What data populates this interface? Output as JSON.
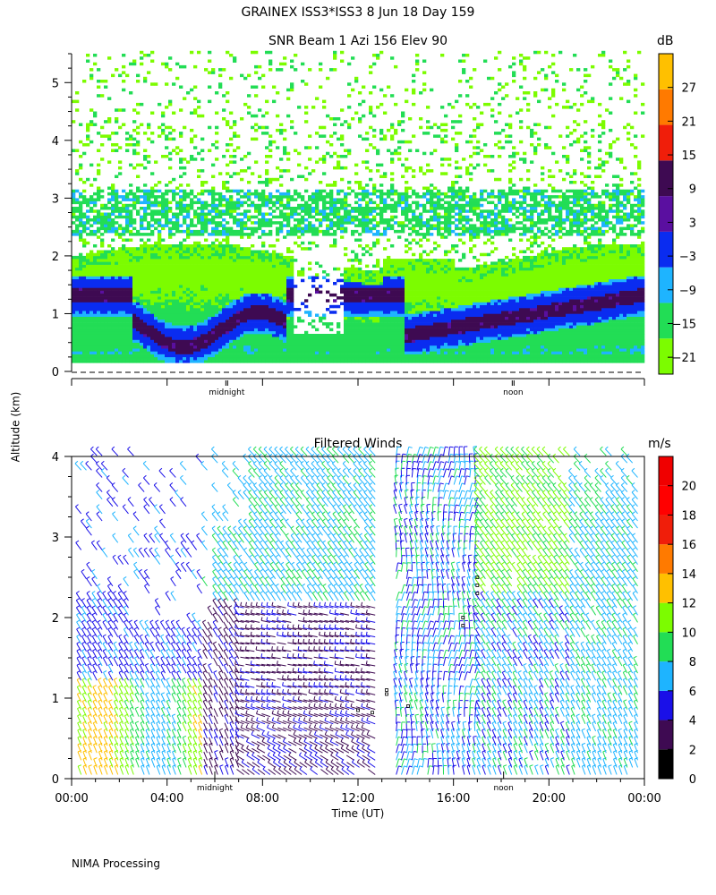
{
  "header": {
    "title": "GRAINEX ISS3*ISS3   8 Jun 18 Day 159",
    "subtitle": "SNR Beam 1 Azi 156 Elev 90"
  },
  "footer": {
    "processing": "NIMA Processing"
  },
  "chart_data": [
    {
      "type": "heatmap",
      "title": "SNR Beam 1 Azi 156 Elev 90",
      "ylabel": "Altitude (km)",
      "ylim": [
        0,
        5.5
      ],
      "yticks": [
        "0",
        "1",
        "2",
        "3",
        "4",
        "5"
      ],
      "markers": [
        "midnight",
        "noon"
      ],
      "marker_hours": [
        6.5,
        18.5
      ],
      "colorbar": {
        "unit": "dB",
        "labels": [
          "27",
          "21",
          "15",
          "9",
          "3",
          "−3",
          "−9",
          "−15",
          "−21"
        ],
        "colors": [
          "#7cfc00",
          "#22dd55",
          "#1eb4ff",
          "#0a2cf0",
          "#5a0fa0",
          "#3e0a52",
          "#f01e0a",
          "#ff7a00",
          "#ffc000"
        ],
        "range": [
          -24,
          33
        ]
      }
    },
    {
      "type": "scatter",
      "title": "Filtered Winds",
      "xlabel": "Time (UT)",
      "ylabel": "Altitude (km)",
      "xlim": [
        0,
        24
      ],
      "ylim": [
        0,
        4
      ],
      "xticks": [
        "00:00",
        "04:00",
        "08:00",
        "12:00",
        "16:00",
        "20:00",
        "00:00"
      ],
      "yticks": [
        "0",
        "1",
        "2",
        "3",
        "4"
      ],
      "markers": [
        "midnight",
        "noon"
      ],
      "marker_hours": [
        6,
        18.1
      ],
      "colorbar": {
        "unit": "m/s",
        "labels": [
          "20",
          "18",
          "16",
          "14",
          "12",
          "10",
          "8",
          "6",
          "4",
          "2",
          "0"
        ],
        "colors": [
          "#000000",
          "#3e0a52",
          "#1a10e8",
          "#1eb4ff",
          "#22dd55",
          "#7cfc00",
          "#ffc000",
          "#ff7a00",
          "#f01e0a",
          "#ff0000",
          "#f00000"
        ],
        "range": [
          0,
          22
        ]
      }
    }
  ]
}
